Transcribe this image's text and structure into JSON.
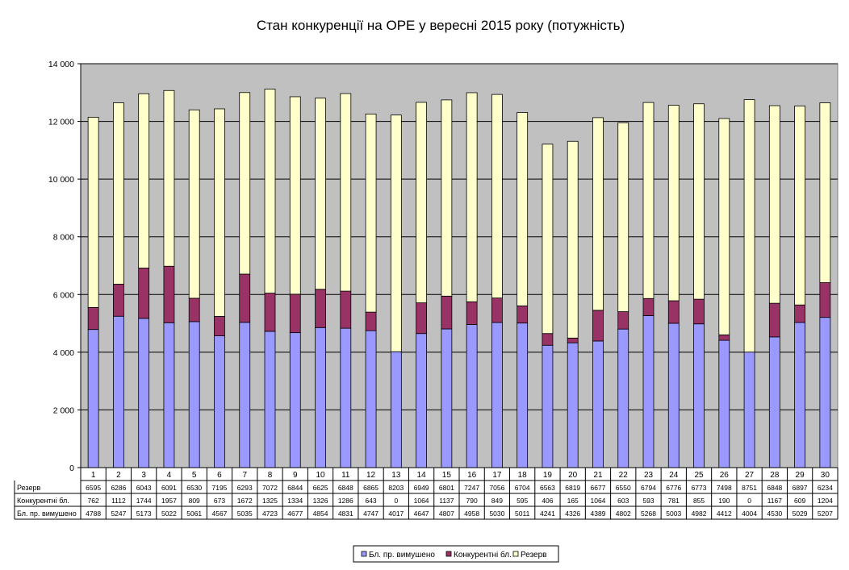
{
  "chart_data": {
    "type": "bar",
    "stacked": true,
    "title": "Стан конкуренції на ОРЕ  у вересні 2015 року (потужність)",
    "xlabel": "",
    "ylabel": "",
    "ylim": [
      0,
      14000
    ],
    "yticks": [
      0,
      2000,
      4000,
      6000,
      8000,
      10000,
      12000,
      14000
    ],
    "ytick_labels": [
      "0",
      "2 000",
      "4 000",
      "6 000",
      "8 000",
      "10 000",
      "12 000",
      "14 000"
    ],
    "grid": true,
    "legend_position": "bottom",
    "categories": [
      "1",
      "2",
      "3",
      "4",
      "5",
      "6",
      "7",
      "8",
      "9",
      "10",
      "11",
      "12",
      "13",
      "14",
      "15",
      "16",
      "17",
      "18",
      "19",
      "20",
      "21",
      "22",
      "23",
      "24",
      "25",
      "26",
      "27",
      "28",
      "29",
      "30"
    ],
    "series": [
      {
        "name": "Бл. пр. вимушено",
        "color": "#9999ff",
        "values": [
          4788,
          5247,
          5173,
          5022,
          5061,
          4567,
          5035,
          4723,
          4677,
          4854,
          4831,
          4747,
          4017,
          4647,
          4807,
          4958,
          5030,
          5011,
          4241,
          4326,
          4389,
          4802,
          5268,
          5003,
          4982,
          4412,
          4004,
          4530,
          5029,
          5207
        ]
      },
      {
        "name": "Конкурентні бл.",
        "color": "#993366",
        "values": [
          762,
          1112,
          1744,
          1957,
          809,
          673,
          1672,
          1325,
          1334,
          1326,
          1286,
          643,
          0,
          1064,
          1137,
          790,
          849,
          595,
          406,
          165,
          1064,
          603,
          593,
          781,
          855,
          190,
          0,
          1167,
          609,
          1204
        ]
      },
      {
        "name": "Резерв",
        "color": "#ffffcc",
        "values": [
          6595,
          6286,
          6043,
          6091,
          6530,
          7195,
          6293,
          7072,
          6844,
          6625,
          6848,
          6865,
          8203,
          6949,
          6801,
          7247,
          7056,
          6704,
          6563,
          6819,
          6677,
          6550,
          6794,
          6776,
          6773,
          7498,
          8751,
          6848,
          6897,
          6234
        ]
      }
    ],
    "table_rows": [
      {
        "label": "Резерв",
        "series": 2
      },
      {
        "label": "Конкурентні бл.",
        "series": 1
      },
      {
        "label": "Бл. пр. вимушено",
        "series": 0
      }
    ],
    "legend": [
      "Бл. пр. вимушено",
      "Конкурентні бл.",
      "Резерв"
    ],
    "plot_background": "#c0c0c0"
  }
}
